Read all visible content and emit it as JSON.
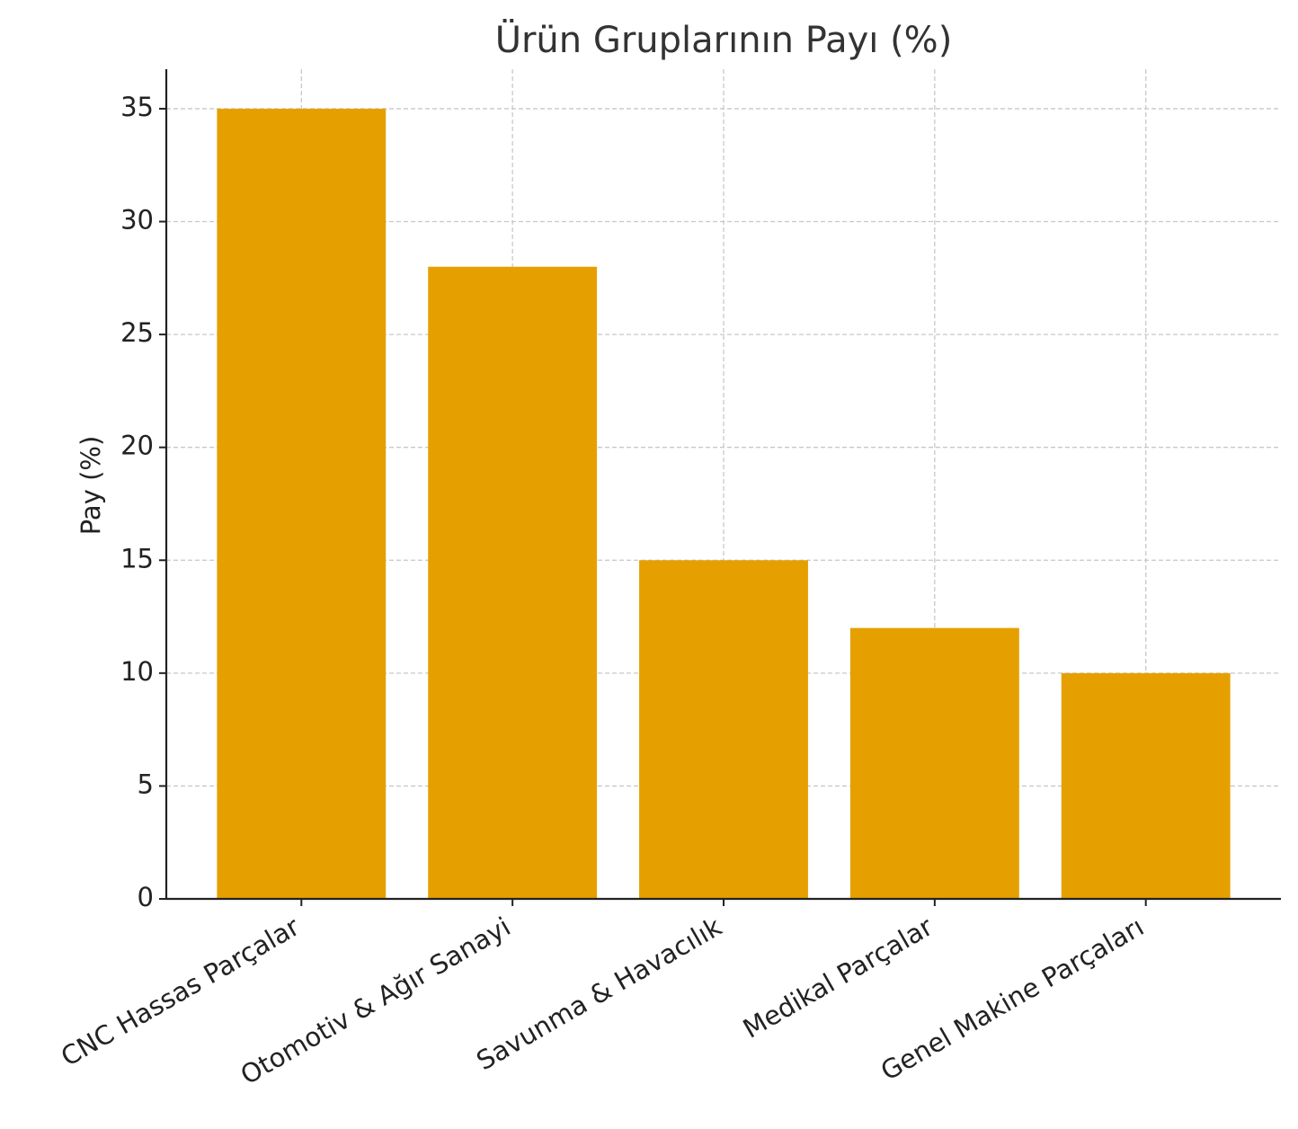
{
  "chart_data": {
    "type": "bar",
    "title": "Ürün Gruplarının Payı (%)",
    "y_label": "Pay (%)",
    "categories": [
      "CNC Hassas Parçalar",
      "Otomotiv & Ağır Sanayi",
      "Savunma & Havacılık",
      "Medikal Parçalar",
      "Genel Makine Parçaları"
    ],
    "values": [
      35,
      28,
      15,
      12,
      10
    ],
    "color": "#e5a000",
    "ylim": [
      0,
      36.75
    ],
    "yticks": [
      0,
      5,
      10,
      15,
      20,
      25,
      30,
      35
    ],
    "grid": true
  }
}
